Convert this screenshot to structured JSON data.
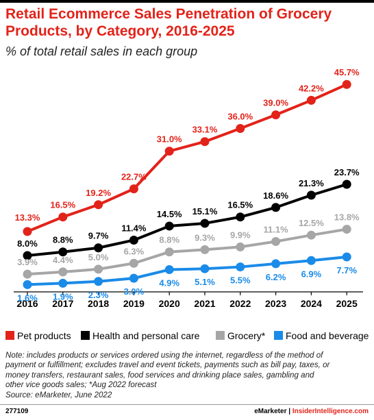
{
  "title_line1": "Retail Ecommerce Sales Penetration of Grocery",
  "title_line2": "Products, by Category, 2016-2025",
  "subtitle": "% of total retail sales in each group",
  "chart_data": {
    "type": "line",
    "title": "Retail Ecommerce Sales Penetration of Grocery Products, by Category, 2016-2025",
    "subtitle": "% of total retail sales in each group",
    "x": [
      "2016",
      "2017",
      "2018",
      "2019",
      "2020",
      "2021",
      "2022",
      "2023",
      "2024",
      "2025"
    ],
    "ylim": [
      0,
      48
    ],
    "legend_position": "bottom",
    "grid": false,
    "series": [
      {
        "name": "Pet products",
        "color": "#e2231a",
        "values": [
          13.3,
          16.5,
          19.2,
          22.7,
          31.0,
          33.1,
          36.0,
          39.0,
          42.2,
          45.7
        ],
        "labels": [
          "13.3%",
          "16.5%",
          "19.2%",
          "22.7%",
          "31.0%",
          "33.1%",
          "36.0%",
          "39.0%",
          "42.2%",
          "45.7%"
        ]
      },
      {
        "name": "Health and personal care",
        "color": "#000000",
        "values": [
          8.0,
          8.8,
          9.7,
          11.4,
          14.5,
          15.1,
          16.5,
          18.6,
          21.3,
          23.7
        ],
        "labels": [
          "8.0%",
          "8.8%",
          "9.7%",
          "11.4%",
          "14.5%",
          "15.1%",
          "16.5%",
          "18.6%",
          "21.3%",
          "23.7%"
        ]
      },
      {
        "name": "Grocery*",
        "color": "#a6a6a6",
        "values": [
          3.9,
          4.4,
          5.0,
          6.3,
          8.8,
          9.3,
          9.9,
          11.1,
          12.5,
          13.8
        ],
        "labels": [
          "3.9%",
          "4.4%",
          "5.0%",
          "6.3%",
          "8.8%",
          "9.3%",
          "9.9%",
          "11.1%",
          "12.5%",
          "13.8%"
        ]
      },
      {
        "name": "Food and beverage",
        "color": "#1a8be8",
        "values": [
          1.6,
          1.9,
          2.3,
          3.0,
          4.9,
          5.1,
          5.5,
          6.2,
          6.9,
          7.7
        ],
        "labels": [
          "1.6%",
          "1.9%",
          "2.3%",
          "3.0%",
          "4.9%",
          "5.1%",
          "5.5%",
          "6.2%",
          "6.9%",
          "7.7%"
        ]
      }
    ]
  },
  "legend": [
    {
      "label": "Pet products",
      "color": "#e2231a"
    },
    {
      "label": "Health and personal care",
      "color": "#000000"
    },
    {
      "label": "Grocery*",
      "color": "#a6a6a6"
    },
    {
      "label": "Food and beverage",
      "color": "#1a8be8"
    }
  ],
  "note_lines": [
    "Note: includes products or services ordered using the internet, regardless of the method of",
    "payment or fulfillment; excludes travel and event tickets, payments such as bill pay, taxes, or",
    "money transfers, restaurant sales, food services and drinking place sales, gambling and",
    "other vice goods sales; *Aug 2022 forecast"
  ],
  "source": "Source: eMarketer, June 2022",
  "footer": {
    "id": "277109",
    "brand": "eMarketer",
    "separator": "|",
    "site": "InsiderIntelligence.com"
  }
}
